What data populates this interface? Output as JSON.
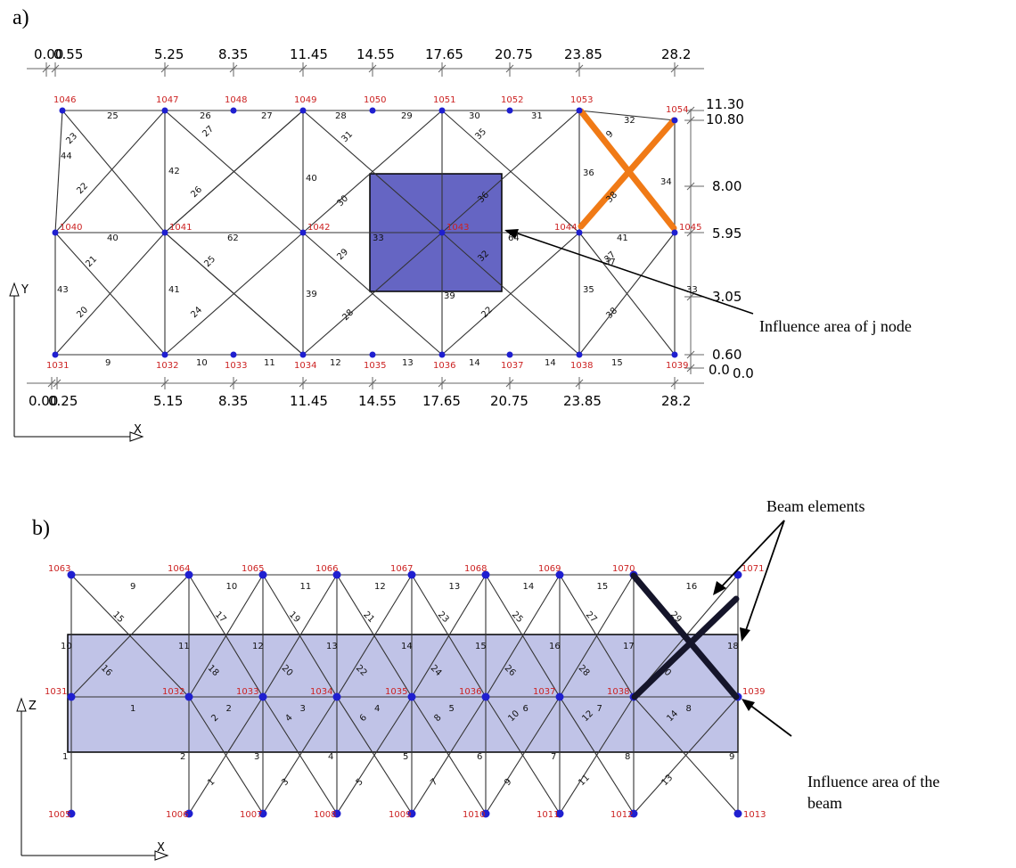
{
  "colors": {
    "node": "#1f1fd0",
    "node_label": "#cc2222",
    "highlight_x": "#f07a16",
    "beam_x": "#15152a",
    "influence_fill": "#4a4ab8",
    "influence_fill_light": "#b9bde4",
    "member": "#333333"
  },
  "panel_a": {
    "label": "a)",
    "top_dims": [
      "0.00",
      "0.55",
      "5.25",
      "8.35",
      "11.45",
      "14.55",
      "17.65",
      "20.75",
      "23.85",
      "28.2"
    ],
    "bottom_dims": [
      "0.00",
      "0.25",
      "5.15",
      "8.35",
      "11.45",
      "14.55",
      "17.65",
      "20.75",
      "23.85",
      "28.2"
    ],
    "right_dims": [
      "11.30",
      "10.80",
      "8.00",
      "5.95",
      "3.05",
      "0.60",
      "0.0",
      "0.0"
    ],
    "axis_y": "Y",
    "axis_x": "X",
    "annotation": "Influence area of j node",
    "nodes_top": [
      "1046",
      "1047",
      "1048",
      "1049",
      "1050",
      "1051",
      "1052",
      "1053",
      "1054"
    ],
    "nodes_mid": [
      "1040",
      "1041",
      "1042",
      "1043",
      "1044",
      "1045"
    ],
    "nodes_bottom": [
      "1031",
      "1032",
      "1033",
      "1034",
      "1035",
      "1036",
      "1037",
      "1038",
      "1039"
    ],
    "elem_top": [
      "25",
      "26",
      "27",
      "28",
      "29",
      "30",
      "31",
      "32"
    ],
    "elem_mid": [
      "40",
      "62",
      "33",
      "64",
      "41"
    ],
    "elem_bottom": [
      "9",
      "10",
      "11",
      "12",
      "13",
      "14",
      "14",
      "15"
    ],
    "elem_vert": [
      "44",
      "43",
      "42",
      "41",
      "40",
      "39",
      "36",
      "35",
      "34",
      "33",
      "37",
      "39"
    ],
    "elem_diag": [
      "23",
      "22",
      "21",
      "20",
      "27",
      "26",
      "25",
      "24",
      "31",
      "30",
      "29",
      "28",
      "35",
      "36",
      "32",
      "22",
      "9",
      "38",
      "37",
      "38"
    ]
  },
  "panel_b": {
    "label": "b)",
    "axis_z": "Z",
    "axis_x": "X",
    "annotation_beam": "Beam elements",
    "annotation_influence_1": "Influence area of  the",
    "annotation_influence_2": "beam",
    "nodes_top": [
      "1063",
      "1064",
      "1065",
      "1066",
      "1067",
      "1068",
      "1069",
      "1070",
      "1071"
    ],
    "nodes_mid": [
      "1031",
      "1032",
      "1033",
      "1034",
      "1035",
      "1036",
      "1037",
      "1038",
      "1039"
    ],
    "nodes_bottom": [
      "1005",
      "1006",
      "1007",
      "1008",
      "1009",
      "1010",
      "1011",
      "1012",
      "1013"
    ],
    "elem_top": [
      "9",
      "10",
      "11",
      "12",
      "13",
      "14",
      "15",
      "16"
    ],
    "elem_mid": [
      "1",
      "2",
      "3",
      "4",
      "5",
      "6",
      "7",
      "8"
    ],
    "elem_vert_top": [
      "10",
      "11",
      "12",
      "13",
      "14",
      "15",
      "16",
      "17",
      "18"
    ],
    "elem_vert_bottom": [
      "1",
      "2",
      "3",
      "4",
      "5",
      "6",
      "7",
      "8",
      "9"
    ],
    "elem_diag_upper": [
      "15",
      "16",
      "17",
      "18",
      "19",
      "20",
      "21",
      "22",
      "23",
      "24",
      "25",
      "26",
      "27",
      "28",
      "29",
      "30"
    ],
    "elem_diag_lower": [
      "1",
      "2",
      "3",
      "4",
      "5",
      "6",
      "7",
      "8",
      "9",
      "10",
      "11",
      "12",
      "13",
      "14"
    ]
  }
}
